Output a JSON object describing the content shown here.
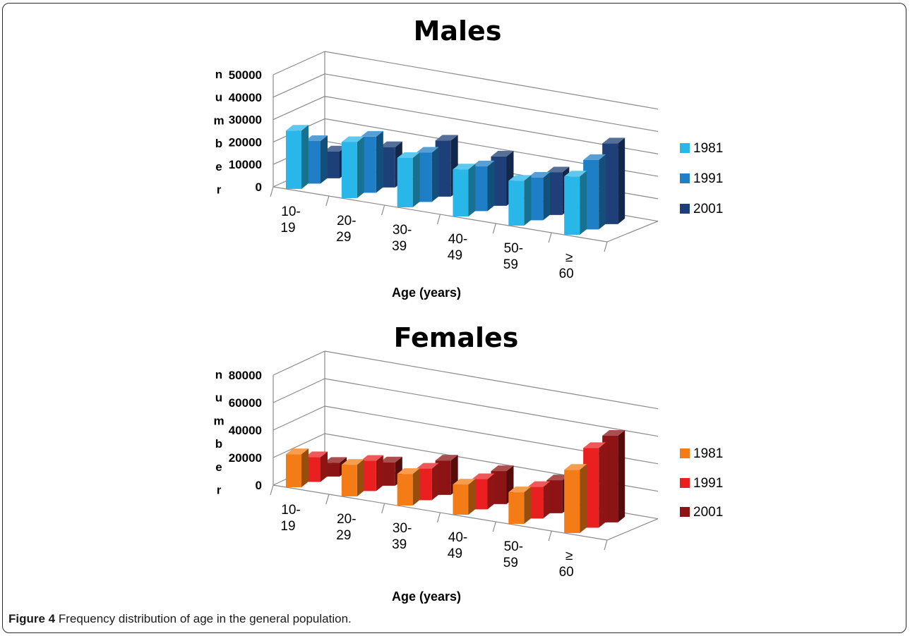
{
  "caption": {
    "label": "Figure 4",
    "text": "Frequency distribution of age in the general population."
  },
  "chart_data": [
    {
      "type": "bar",
      "title": "Males",
      "xlabel": "Age (years)",
      "ylabel": [
        "n",
        "u",
        "m",
        "b",
        "e",
        "r"
      ],
      "ylim": [
        0,
        50000
      ],
      "yticks": [
        "50000",
        "40000",
        "30000",
        "20000",
        "10000",
        "0"
      ],
      "categories": [
        [
          "10-",
          "19"
        ],
        [
          "20-",
          "29"
        ],
        [
          "30-",
          "39"
        ],
        [
          "40-",
          "49"
        ],
        [
          "50-",
          "59"
        ],
        [
          "≥",
          "60"
        ]
      ],
      "series": [
        {
          "name": "1981",
          "values": [
            26000,
            25000,
            22000,
            21000,
            20000,
            26000
          ],
          "color": "#29b6e8"
        },
        {
          "name": "1991",
          "values": [
            19000,
            25000,
            22000,
            20000,
            19000,
            31000
          ],
          "color": "#1f7fc6"
        },
        {
          "name": "2001",
          "values": [
            12000,
            18000,
            25000,
            22000,
            19000,
            36000
          ],
          "color": "#1e3f77"
        }
      ],
      "legend": "right"
    },
    {
      "type": "bar",
      "title": "Females",
      "xlabel": "Age (years)",
      "ylabel": [
        "n",
        "u",
        "m",
        "b",
        "e",
        "r"
      ],
      "ylim": [
        0,
        80000
      ],
      "yticks": [
        "80000",
        "60000",
        "40000",
        "20000",
        "0"
      ],
      "categories": [
        [
          "10-",
          "19"
        ],
        [
          "20-",
          "29"
        ],
        [
          "30-",
          "39"
        ],
        [
          "40-",
          "49"
        ],
        [
          "50-",
          "59"
        ],
        [
          "≥",
          "60"
        ]
      ],
      "series": [
        {
          "name": "1981",
          "values": [
            24000,
            23000,
            23000,
            22000,
            23000,
            46000
          ],
          "color": "#f47c16"
        },
        {
          "name": "1991",
          "values": [
            18000,
            22000,
            23000,
            22000,
            23000,
            58000
          ],
          "color": "#ea2020"
        },
        {
          "name": "2001",
          "values": [
            10000,
            17000,
            25000,
            24000,
            24000,
            63000
          ],
          "color": "#8c1414"
        }
      ],
      "legend": "right"
    }
  ]
}
